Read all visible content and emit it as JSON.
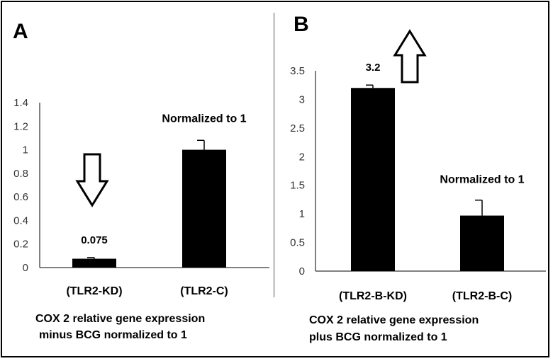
{
  "colors": {
    "bar": "#000000",
    "axis": "#000000",
    "tick_text": "#333333",
    "arrow_fill": "#ffffff"
  },
  "panel_a": {
    "letter": "A",
    "caption_line1": "COX 2 relative gene expression",
    "caption_line2": "minus BCG normalized to 1"
  },
  "panel_b": {
    "letter": "B",
    "caption_line1": "COX 2 relative gene expression",
    "caption_line2": "plus  BCG normalized to 1"
  },
  "chart_data": [
    {
      "type": "bar",
      "categories": [
        "(TLR2-KD)",
        "(TLR2-C)"
      ],
      "values": [
        0.075,
        1
      ],
      "error": [
        0.01,
        0.08
      ],
      "data_labels": [
        "0.075",
        "Normalized to 1"
      ],
      "ylim": [
        0,
        1.4
      ],
      "yticks": [
        "0",
        "0.2",
        "0.4",
        "0.6",
        "0.8",
        "1",
        "1.2",
        "1.4"
      ],
      "annotation_arrow": "down",
      "title": "",
      "xlabel": "",
      "ylabel": "",
      "grid": false
    },
    {
      "type": "bar",
      "categories": [
        "(TLR2-B-KD)",
        "(TLR2-B-C)"
      ],
      "values": [
        3.2,
        0.97
      ],
      "error": [
        0.05,
        0.27
      ],
      "data_labels": [
        "3.2",
        "Normalized to 1"
      ],
      "ylim": [
        0,
        3.5
      ],
      "yticks": [
        "0",
        "0.5",
        "1",
        "1.5",
        "2",
        "2.5",
        "3",
        "3.5"
      ],
      "annotation_arrow": "up",
      "title": "",
      "xlabel": "",
      "ylabel": "",
      "grid": false
    }
  ]
}
